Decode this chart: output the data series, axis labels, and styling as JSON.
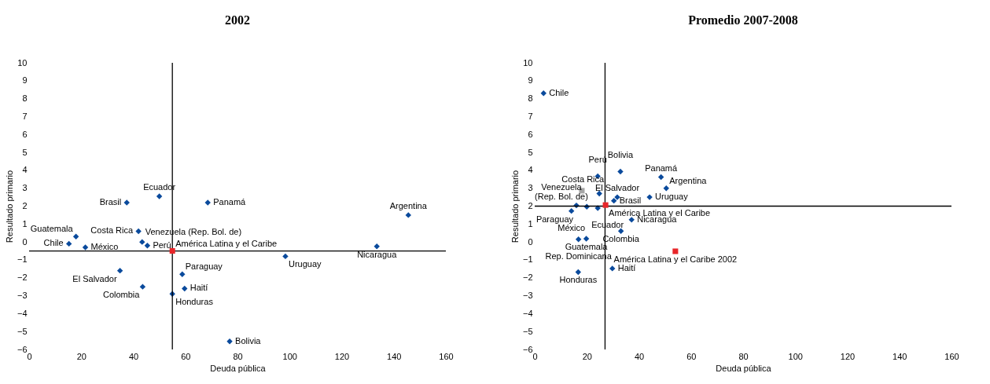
{
  "chart_data": [
    {
      "type": "scatter",
      "title": "2002",
      "xlabel": "Deuda pública",
      "ylabel": "Resultado primario",
      "xlim": [
        0,
        160
      ],
      "ylim": [
        -6,
        10
      ],
      "xticks": [
        0,
        20,
        40,
        60,
        80,
        100,
        120,
        140,
        160
      ],
      "yticks": [
        -6,
        -5,
        -4,
        -3,
        -2,
        -1,
        0,
        1,
        2,
        3,
        4,
        5,
        6,
        7,
        8,
        9,
        10
      ],
      "grid": false,
      "ref_lines": [
        {
          "axis": "x",
          "value": 55,
          "color": "#000000"
        },
        {
          "axis": "y",
          "value": -0.5,
          "color": "#000000"
        }
      ],
      "series": [
        {
          "color": "#0a4a9c",
          "marker": "diamond",
          "x": [
            15.3,
            18,
            21.6,
            37.5,
            50,
            42,
            43.4,
            45.4,
            68.6,
            145.6,
            133.5,
            98.4,
            58.8,
            59.7,
            55,
            34.9,
            43.6,
            77
          ],
          "values": [
            -0.1,
            0.3,
            -0.3,
            2.2,
            2.55,
            0.6,
            0.0,
            -0.2,
            2.2,
            1.5,
            -0.25,
            -0.8,
            -1.8,
            -2.6,
            -2.9,
            -1.6,
            -2.5,
            -5.55
          ],
          "value_labels": [
            "Chile",
            "Guatemala",
            "México",
            "Brasil",
            "Ecuador",
            "Costa Rica",
            "Venezuela (Rep. Bol. de)",
            "Perú",
            "Panamá",
            "Argentina",
            "Nicaragua",
            "Uruguay",
            "Paraguay",
            "Haití",
            "Honduras",
            "El Salvador",
            "Colombia",
            "Bolivia"
          ]
        },
        {
          "name": "América Latina y el Caribe",
          "color": "#e8262a",
          "marker": "square",
          "x": [
            55
          ],
          "values": [
            -0.5
          ]
        }
      ]
    },
    {
      "type": "scatter",
      "title": "Promedio 2007-2008",
      "xlabel": "Deuda pública",
      "ylabel": "Resultado primario",
      "xlim": [
        0,
        160
      ],
      "ylim": [
        -6,
        10
      ],
      "xticks": [
        0,
        20,
        40,
        60,
        80,
        100,
        120,
        140,
        160
      ],
      "yticks": [
        -6,
        -5,
        -4,
        -3,
        -2,
        -1,
        0,
        1,
        2,
        3,
        4,
        5,
        6,
        7,
        8,
        9,
        10
      ],
      "grid": false,
      "ref_lines": [
        {
          "axis": "x",
          "value": 27,
          "color": "#000000"
        },
        {
          "axis": "y",
          "value": 2,
          "color": "#000000"
        }
      ],
      "series": [
        {
          "color": "#0a4a9c",
          "marker": "diamond",
          "x": [
            3.4,
            24.2,
            32.9,
            24.8,
            14.1,
            16.0,
            20.0,
            24.2,
            16.8,
            19.8,
            16.7,
            29.8,
            33.1,
            37.2,
            30.4,
            31.7,
            44.1,
            48.5,
            50.5
          ],
          "values": [
            8.3,
            3.67,
            3.93,
            2.7,
            1.73,
            2.04,
            1.97,
            1.89,
            0.15,
            0.18,
            -1.68,
            -1.48,
            0.61,
            1.24,
            2.3,
            2.5,
            2.5,
            3.62,
            3.0
          ],
          "value_labels": [
            "Chile",
            "Perú",
            "Bolivia",
            "Costa Rica",
            "México",
            "Paraguay",
            null,
            "Ecuador",
            "Rep. Dominicana",
            "Guatemala",
            "Honduras",
            "Haití",
            "Colombia",
            "Nicaragua",
            "Brasil",
            "El Salvador",
            "Uruguay",
            "Panamá",
            "Argentina"
          ]
        },
        {
          "name": "Venezuela (Rep. Bol. de)",
          "color": "#a6a6a6",
          "marker": "square",
          "x": [
            18.1
          ],
          "values": [
            2.86
          ]
        },
        {
          "name": "América Latina y el Caribe",
          "color": "#e8262a",
          "marker": "square",
          "x": [
            27.2
          ],
          "values": [
            2.06
          ]
        },
        {
          "name": "América Latina y el Caribe 2002",
          "color": "#e8262a",
          "marker": "square",
          "x": [
            54
          ],
          "values": [
            -0.52
          ]
        }
      ]
    }
  ]
}
